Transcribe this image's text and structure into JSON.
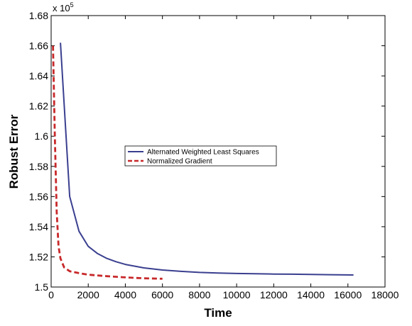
{
  "chart_data": {
    "type": "line",
    "xlabel": "Time",
    "ylabel": "Robust Error",
    "y_multiplier": "x 10",
    "y_multiplier_exp": "5",
    "xlim": [
      0,
      18000
    ],
    "ylim": [
      1.5,
      1.68
    ],
    "x_ticks": [
      {
        "value": 0,
        "label": "0"
      },
      {
        "value": 2000,
        "label": "2000"
      },
      {
        "value": 4000,
        "label": "4000"
      },
      {
        "value": 6000,
        "label": "6000"
      },
      {
        "value": 8000,
        "label": "8000"
      },
      {
        "value": 10000,
        "label": "10000"
      },
      {
        "value": 12000,
        "label": "12000"
      },
      {
        "value": 14000,
        "label": "14000"
      },
      {
        "value": 16000,
        "label": "16000"
      },
      {
        "value": 18000,
        "label": "18000"
      }
    ],
    "y_ticks": [
      {
        "value": 1.5,
        "label": "1.5"
      },
      {
        "value": 1.52,
        "label": "1.52"
      },
      {
        "value": 1.54,
        "label": "1.54"
      },
      {
        "value": 1.56,
        "label": "1.56"
      },
      {
        "value": 1.58,
        "label": "1.58"
      },
      {
        "value": 1.6,
        "label": "1.6"
      },
      {
        "value": 1.62,
        "label": "1.62"
      },
      {
        "value": 1.64,
        "label": "1.64"
      },
      {
        "value": 1.66,
        "label": "1.66"
      },
      {
        "value": 1.68,
        "label": "1.68"
      }
    ],
    "grid": false,
    "legend_position": "center",
    "series": [
      {
        "name": "Alternated Weighted Least Squares",
        "color": "#3a3f8f",
        "style": "solid",
        "x": [
          500,
          1000,
          1500,
          2000,
          2500,
          3000,
          3500,
          4000,
          5000,
          6000,
          7000,
          8000,
          9000,
          10000,
          11000,
          12000,
          13000,
          14000,
          15000,
          16300
        ],
        "y": [
          1.662,
          1.56,
          1.537,
          1.527,
          1.5222,
          1.519,
          1.5168,
          1.515,
          1.5127,
          1.5113,
          1.5104,
          1.5097,
          1.5093,
          1.509,
          1.5088,
          1.5086,
          1.5085,
          1.5083,
          1.5082,
          1.508
        ]
      },
      {
        "name": "Normalized Gradient",
        "color": "#c8282a",
        "style": "dashed",
        "x": [
          100,
          200,
          300,
          400,
          500,
          700,
          1000,
          1500,
          2000,
          3000,
          4000,
          5000,
          6000
        ],
        "y": [
          1.66,
          1.6,
          1.55,
          1.527,
          1.519,
          1.513,
          1.5105,
          1.5092,
          1.5082,
          1.5072,
          1.5064,
          1.5058,
          1.5055
        ]
      }
    ]
  }
}
